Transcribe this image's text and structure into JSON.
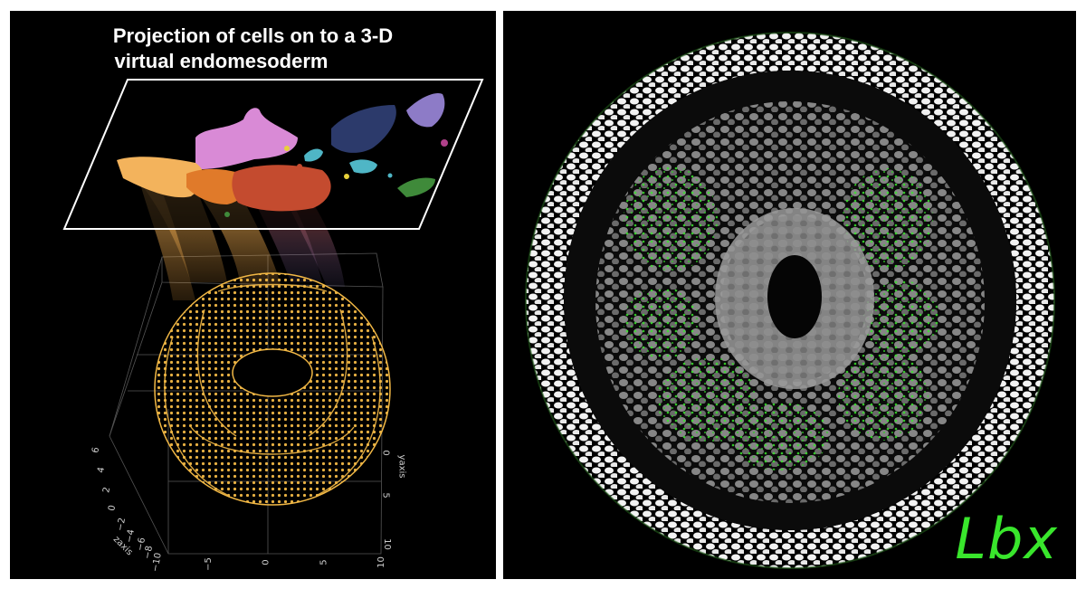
{
  "left_panel": {
    "title_line1": "Projection of cells on to a 3-D",
    "title_line2": "virtual endomesoderm",
    "axes": {
      "zaxis_label": "zaxis",
      "yaxis_label": "yaxis",
      "z_ticks": [
        "6",
        "4",
        "2",
        "0",
        "−2",
        "−4",
        "−6",
        "−8",
        "−10"
      ],
      "x_ticks": [
        "−5",
        "0",
        "5",
        "10"
      ],
      "y_ticks": [
        "0",
        "5",
        "10"
      ]
    },
    "cluster_colors": [
      "#f3b35c",
      "#e07a2a",
      "#c44b2f",
      "#d98ad6",
      "#2c3a6b",
      "#8d7bc7",
      "#4fb6c6",
      "#3f8a3a",
      "#e8d13a",
      "#b0408a"
    ],
    "surface_color": "#f2b845"
  },
  "right_panel": {
    "gene_label": "Lbx",
    "signal_color": "#39e62c",
    "nuclei_color": "#e6e6e6"
  }
}
